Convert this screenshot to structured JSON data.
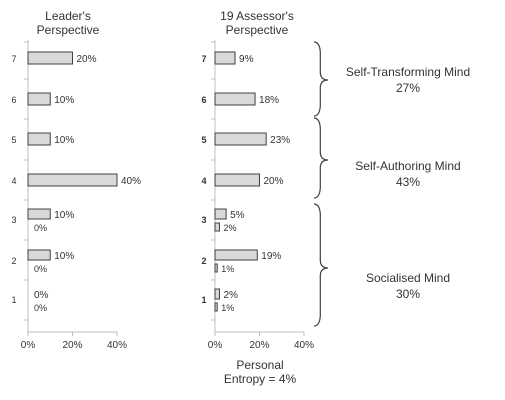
{
  "colors": {
    "bar_fill": "#d9d9d9",
    "bar_stroke": "#404040",
    "text": "#333333",
    "axis": "#bfbfbf",
    "bracket": "#404040"
  },
  "chart_data": [
    {
      "type": "bar",
      "orientation": "horizontal",
      "title": "Leader's\nPerspective",
      "categories": [
        "1",
        "2",
        "3",
        "4",
        "5",
        "6",
        "7"
      ],
      "xlim": [
        0,
        40
      ],
      "x_ticks": [
        "0%",
        "20%",
        "40%"
      ],
      "grid": false,
      "series": [
        {
          "values": [
            0,
            10,
            10,
            40,
            10,
            10,
            20
          ],
          "labels": [
            "0%",
            "10%",
            "10%",
            "40%",
            "10%",
            "10%",
            "20%"
          ]
        },
        {
          "values": [
            0,
            0,
            0,
            null,
            null,
            null,
            null
          ],
          "labels": [
            "0%",
            "0%",
            "0%",
            null,
            null,
            null,
            null
          ]
        }
      ]
    },
    {
      "type": "bar",
      "orientation": "horizontal",
      "title": "19 Assessor's\nPerspective",
      "categories": [
        "1",
        "2",
        "3",
        "4",
        "5",
        "6",
        "7"
      ],
      "xlim": [
        0,
        40
      ],
      "x_ticks": [
        "0%",
        "20%",
        "40%"
      ],
      "grid": false,
      "series": [
        {
          "values": [
            2,
            19,
            5,
            20,
            23,
            18,
            9
          ],
          "labels": [
            "2%",
            "19%",
            "5%",
            "20%",
            "23%",
            "18%",
            "9%"
          ]
        },
        {
          "values": [
            1,
            1,
            2,
            null,
            null,
            null,
            null
          ],
          "labels": [
            "1%",
            "1%",
            "2%",
            null,
            null,
            null,
            null
          ]
        }
      ],
      "groups": [
        {
          "name": "Self-Transforming Mind",
          "value": "27%",
          "levels": [
            6,
            7
          ]
        },
        {
          "name": "Self-Authoring Mind",
          "value": "43%",
          "levels": [
            4,
            5
          ]
        },
        {
          "name": "Socialised Mind",
          "value": "30%",
          "levels": [
            1,
            2,
            3
          ]
        }
      ]
    }
  ],
  "footer": {
    "line1": "Personal",
    "line2": "Entropy = 4%"
  }
}
